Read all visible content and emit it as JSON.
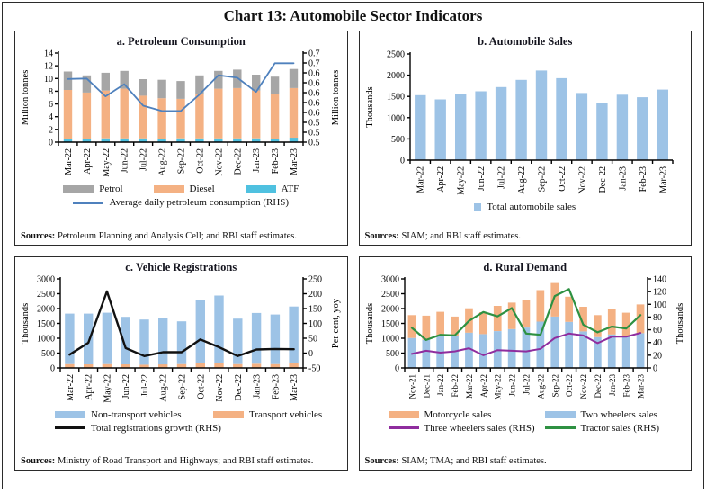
{
  "title": "Chart 13: Automobile Sector Indicators",
  "sources_label": "Sources:",
  "colors": {
    "gray": "#A6A6A6",
    "orange": "#F4B183",
    "cyan": "#4FC1E0",
    "blue_bar": "#9DC3E6",
    "blue_line": "#4F81BD",
    "black_line": "#111111",
    "purple_line": "#8F2D9E",
    "green_line": "#2E9142"
  },
  "chart_data": [
    {
      "panel": "a",
      "type": "bar+line",
      "title": "a. Petroleum Consumption",
      "sources": "Petroleum Planning and Analysis Cell; and RBI staff estimates.",
      "categories": [
        "Mar-22",
        "Apr-22",
        "May-22",
        "Jun-22",
        "Jul-22",
        "Aug-22",
        "Sep-22",
        "Oct-22",
        "Nov-22",
        "Dec-22",
        "Jan-23",
        "Feb-23",
        "Mar-23"
      ],
      "ylabel_left": "Million tonnes",
      "ylabel_right": "Million tonnes",
      "lhs": {
        "min": 0,
        "max": 14,
        "ticks": [
          0,
          2,
          4,
          6,
          8,
          10,
          12,
          14
        ]
      },
      "rhs": {
        "min": 0.5,
        "max": 0.72,
        "tick_labels_top_to_bottom": [
          "0.7",
          "0.7",
          "0.6",
          "0.6",
          "0.6",
          "0.6",
          "0.6",
          "0.5",
          "0.5",
          "0.5"
        ]
      },
      "stacked_bars": [
        {
          "name": "ATF",
          "color": "cyan",
          "values": [
            0.5,
            0.5,
            0.6,
            0.6,
            0.6,
            0.5,
            0.6,
            0.6,
            0.6,
            0.6,
            0.6,
            0.5,
            0.7
          ]
        },
        {
          "name": "Diesel",
          "color": "orange",
          "values": [
            7.7,
            7.3,
            7.5,
            7.8,
            6.7,
            6.4,
            6.2,
            7.0,
            7.8,
            7.9,
            7.5,
            7.1,
            7.8
          ]
        },
        {
          "name": "Petrol",
          "color": "gray",
          "values": [
            2.9,
            2.7,
            2.8,
            2.8,
            2.6,
            2.9,
            2.8,
            2.9,
            2.8,
            2.9,
            2.5,
            2.7,
            3.0
          ]
        }
      ],
      "lines": [
        {
          "name": "Average daily petroleum consumption (RHS)",
          "axis": "rhs",
          "color": "blue_line",
          "width": 1.8,
          "values": [
            0.656,
            0.657,
            0.613,
            0.643,
            0.59,
            0.577,
            0.577,
            0.618,
            0.665,
            0.659,
            0.624,
            0.695,
            0.695
          ]
        }
      ],
      "legend_rows": [
        [
          {
            "shape": "bar",
            "color": "gray",
            "label": "Petrol"
          },
          {
            "shape": "bar",
            "color": "orange",
            "label": "Diesel"
          },
          {
            "shape": "bar",
            "color": "cyan",
            "label": "ATF"
          }
        ],
        [
          {
            "shape": "line",
            "color": "blue_line",
            "label": "Average daily petroleum consumption (RHS)"
          }
        ]
      ]
    },
    {
      "panel": "b",
      "type": "bar",
      "title": "b. Automobile Sales",
      "sources": "SIAM; and RBI staff estimates.",
      "categories": [
        "Mar-22",
        "Apr-22",
        "May-22",
        "Jun-22",
        "Jul-22",
        "Aug-22",
        "Sep-22",
        "Oct-22",
        "Nov-22",
        "Dec-22",
        "Jan-23",
        "Feb-23",
        "Mar-23"
      ],
      "ylabel_left": "Thousands",
      "lhs": {
        "min": 0,
        "max": 2500,
        "ticks": [
          0,
          500,
          1000,
          1500,
          2000,
          2500
        ]
      },
      "stacked_bars": [
        {
          "name": "Total automobile sales",
          "color": "blue_bar",
          "values": [
            1530,
            1430,
            1550,
            1620,
            1720,
            1890,
            2110,
            1930,
            1580,
            1350,
            1540,
            1480,
            1660
          ]
        }
      ],
      "lines": [],
      "legend_rows": [
        [
          {
            "shape": "square",
            "color": "blue_bar",
            "label": "Total automobile sales"
          }
        ]
      ]
    },
    {
      "panel": "c",
      "type": "bar+line",
      "title": "c. Vehicle Registrations",
      "sources": "Ministry of Road Transport and Highways; and RBI staff estimates.",
      "categories": [
        "Mar-22",
        "Apr-22",
        "May-22",
        "Jun-22",
        "Jul-22",
        "Aug-22",
        "Sep-22",
        "Oct-22",
        "Nov-22",
        "Dec-22",
        "Jan-23",
        "Feb-23",
        "Mar-23"
      ],
      "ylabel_left": "Thousands",
      "ylabel_right": "Per cent, yoy",
      "lhs": {
        "min": 0,
        "max": 3000,
        "ticks": [
          0,
          500,
          1000,
          1500,
          2000,
          2500,
          3000
        ]
      },
      "rhs": {
        "min": -50,
        "max": 250,
        "ticks": [
          -50,
          0,
          50,
          100,
          150,
          200,
          250
        ]
      },
      "stacked_bars": [
        {
          "name": "Transport vehicles",
          "color": "orange",
          "values": [
            130,
            120,
            130,
            120,
            110,
            120,
            130,
            150,
            170,
            130,
            140,
            130,
            160
          ]
        },
        {
          "name": "Non-transport vehicles",
          "color": "blue_bar",
          "values": [
            1700,
            1710,
            1730,
            1600,
            1520,
            1560,
            1440,
            2140,
            2270,
            1530,
            1710,
            1670,
            1910
          ]
        }
      ],
      "lines": [
        {
          "name": "Total registrations growth (RHS)",
          "axis": "rhs",
          "color": "black_line",
          "width": 2.4,
          "values": [
            -5,
            35,
            208,
            17,
            -10,
            3,
            3,
            46,
            20,
            -10,
            12,
            14,
            13
          ]
        }
      ],
      "legend_rows": [
        [
          {
            "shape": "bar",
            "color": "blue_bar",
            "label": "Non-transport vehicles"
          },
          {
            "shape": "bar",
            "color": "orange",
            "label": "Transport vehicles"
          }
        ],
        [
          {
            "shape": "line",
            "color": "black_line",
            "label": "Total registrations growth (RHS)"
          }
        ]
      ]
    },
    {
      "panel": "d",
      "type": "bar+line",
      "title": "d. Rural Demand",
      "sources": "SIAM; TMA; and RBI staff estimates.",
      "categories": [
        "Nov-21",
        "Dec-21",
        "Jan-22",
        "Feb-22",
        "Mar-22",
        "Apr-22",
        "May-22",
        "Jun-22",
        "Jul-22",
        "Aug-22",
        "Sep-22",
        "Oct-22",
        "Nov-22",
        "Dec-22",
        "Jan-23",
        "Feb-23",
        "Mar-23"
      ],
      "ylabel_left": "Thousands",
      "ylabel_right": "Thousands",
      "lhs": {
        "min": 0,
        "max": 3000,
        "ticks": [
          0,
          500,
          1000,
          1500,
          2000,
          2500,
          3000
        ]
      },
      "rhs": {
        "min": 0,
        "max": 140,
        "ticks": [
          0,
          20,
          40,
          60,
          80,
          100,
          120,
          140
        ]
      },
      "stacked_bars": [
        {
          "name": "Two wheelers sales",
          "color": "blue_bar",
          "values": [
            1010,
            950,
            1100,
            1060,
            1190,
            1140,
            1240,
            1310,
            1360,
            1560,
            1730,
            1550,
            1230,
            1040,
            1130,
            1090,
            1170
          ]
        },
        {
          "name": "Motorcycle sales",
          "color": "orange",
          "values": [
            770,
            810,
            790,
            670,
            820,
            740,
            850,
            890,
            930,
            1060,
            1130,
            850,
            830,
            740,
            850,
            770,
            970
          ]
        }
      ],
      "lines": [
        {
          "name": "Three wheelers sales (RHS)",
          "axis": "rhs",
          "color": "purple_line",
          "width": 2,
          "values": [
            22,
            27,
            24,
            26,
            31,
            20,
            28,
            27,
            26,
            30,
            47,
            54,
            51,
            39,
            49,
            49,
            55
          ]
        },
        {
          "name": "Tractor sales (RHS)",
          "axis": "rhs",
          "color": "green_line",
          "width": 2.2,
          "values": [
            63,
            44,
            52,
            51,
            74,
            88,
            81,
            94,
            54,
            52,
            113,
            124,
            68,
            56,
            65,
            62,
            83
          ]
        }
      ],
      "legend_rows": [
        [
          {
            "shape": "bar",
            "color": "orange",
            "label": "Motorcycle sales"
          },
          {
            "shape": "bar",
            "color": "blue_bar",
            "label": "Two wheelers sales"
          }
        ],
        [
          {
            "shape": "line",
            "color": "purple_line",
            "label": "Three wheelers sales (RHS)"
          },
          {
            "shape": "line",
            "color": "green_line",
            "label": "Tractor sales (RHS)"
          }
        ]
      ]
    }
  ]
}
